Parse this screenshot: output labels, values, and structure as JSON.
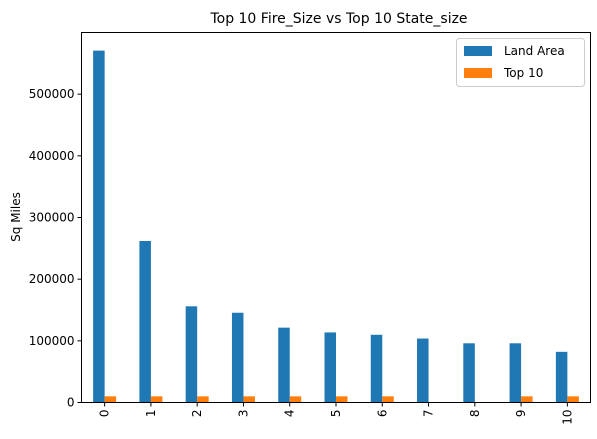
{
  "chart_data": {
    "type": "bar",
    "title": "Top 10 Fire_Size vs Top 10 State_size",
    "xlabel": "",
    "ylabel": "Sq Miles",
    "categories": [
      "0",
      "1",
      "2",
      "3",
      "4",
      "5",
      "6",
      "7",
      "8",
      "9",
      "10"
    ],
    "series": [
      {
        "name": "Land Area",
        "color": "#1f77b4",
        "values": [
          570641,
          261914,
          155973,
          145556,
          121365,
          113642,
          109806,
          103730,
          96002,
          95997,
          82168
        ]
      },
      {
        "name": "Top 10",
        "color": "#ff7f0e",
        "values": [
          10000,
          10000,
          10000,
          10000,
          10000,
          10000,
          10000,
          0,
          0,
          10000,
          10000
        ]
      }
    ],
    "ylim": [
      0,
      600000
    ],
    "yticks": [
      0,
      100000,
      200000,
      300000,
      400000,
      500000
    ],
    "grid": false,
    "legend_position": "upper right"
  }
}
